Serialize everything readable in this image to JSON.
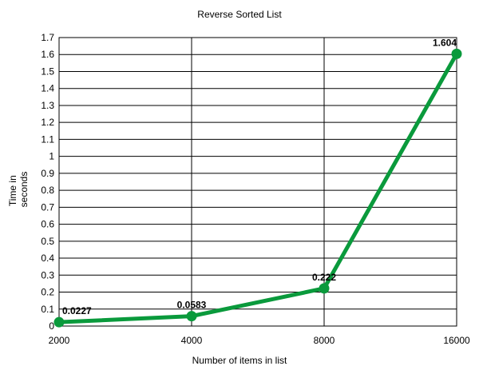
{
  "chart_data": {
    "type": "line",
    "title": "Reverse Sorted List",
    "xlabel": "Number of items in list",
    "ylabel_lines": [
      "Time in",
      "seconds"
    ],
    "categories": [
      "2000",
      "4000",
      "8000",
      "16000"
    ],
    "series": [
      {
        "values": [
          0.0227,
          0.0583,
          0.222,
          1.604
        ],
        "data_labels": [
          "0.0227",
          "0.0583",
          "0.222",
          "1.604"
        ],
        "color": "#0a9a3c"
      }
    ],
    "ylim": [
      0,
      1.7
    ],
    "y_ticks": [
      "0",
      "0.1",
      "0.2",
      "0.3",
      "0.4",
      "0.5",
      "0.6",
      "0.7",
      "0.8",
      "0.9",
      "1",
      "1.1",
      "1.2",
      "1.3",
      "1.4",
      "1.5",
      "1.6",
      "1.7"
    ],
    "grid": true,
    "legend": "none"
  }
}
